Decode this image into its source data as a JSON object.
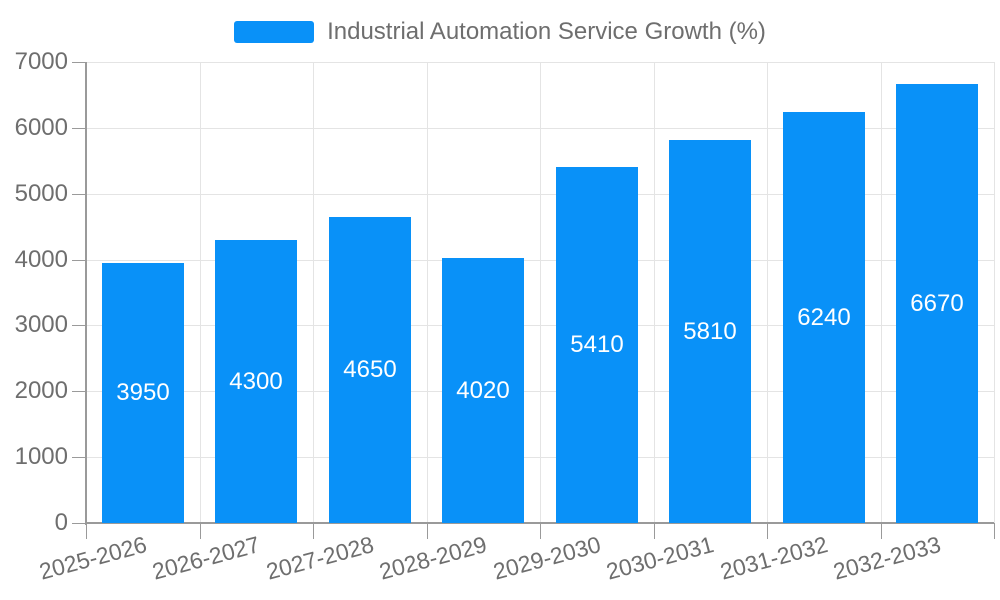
{
  "chart_data": {
    "type": "bar",
    "title": "Industrial Automation Service Growth (%)",
    "categories": [
      "2025-2026",
      "2026-2027",
      "2027-2028",
      "2028-2029",
      "2029-2030",
      "2030-2031",
      "2031-2032",
      "2032-2033"
    ],
    "values": [
      3950,
      4300,
      4650,
      4020,
      5410,
      5810,
      6240,
      6670
    ],
    "value_labels": [
      "3950",
      "4300",
      "4650",
      "4020",
      "5410",
      "5810",
      "6240",
      "6670"
    ],
    "ytick_labels": [
      "0",
      "1000",
      "2000",
      "3000",
      "4000",
      "5000",
      "6000",
      "7000"
    ],
    "yticks": [
      0,
      1000,
      2000,
      3000,
      4000,
      5000,
      6000,
      7000
    ],
    "ylim": [
      0,
      7000
    ],
    "grid": true,
    "legend_position": "top",
    "x_label_rotation_deg": -15,
    "colors": {
      "bar": "#0991f8",
      "bar_value_text": "#ffffff",
      "axis_text": "#6e6e6e",
      "gridline": "#e4e4e4",
      "axis_line": "#9a9a9a"
    }
  }
}
